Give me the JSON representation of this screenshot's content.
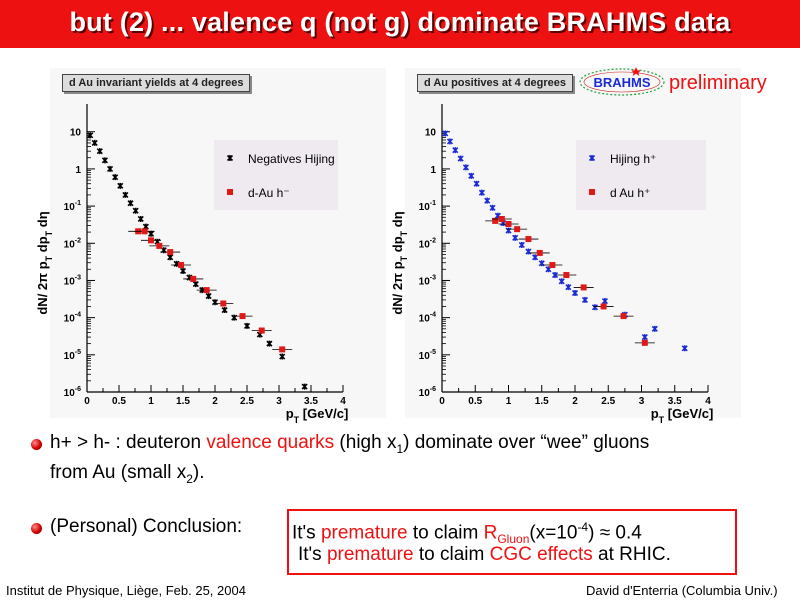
{
  "header": {
    "title": "but (2) ... valence q (not g) dominate BRAHMS data"
  },
  "logo": {
    "text": "BRAHMS"
  },
  "preliminary": "preliminary",
  "colors": {
    "accent": "#ee1111",
    "black_series": "#000000",
    "blue_series": "#1a2bd6",
    "red_series": "#e01818"
  },
  "chart_data": [
    {
      "type": "scatter",
      "title": "d Au invariant yields at 4 degrees",
      "xlabel": "p_T [GeV/c]",
      "ylabel": "dN/ 2π p_T dp_T dη",
      "y_log": true,
      "xlim": [
        0,
        4
      ],
      "ylim": [
        1e-06,
        30
      ],
      "x_ticks": [
        "0",
        "0.5",
        "1",
        "1.5",
        "2",
        "2.5",
        "3",
        "3.5",
        "4"
      ],
      "y_ticks": [
        "10",
        "1",
        "10^-1",
        "10^-2",
        "10^-3",
        "10^-4",
        "10^-5",
        "10^-6"
      ],
      "legend_position": "top-right",
      "series": [
        {
          "name": "Negatives Hijing",
          "color": "#000000",
          "marker": "star",
          "x": [
            0.05,
            0.12,
            0.2,
            0.28,
            0.36,
            0.44,
            0.52,
            0.6,
            0.68,
            0.76,
            0.84,
            0.92,
            1.0,
            1.1,
            1.2,
            1.3,
            1.4,
            1.5,
            1.6,
            1.7,
            1.8,
            1.9,
            2.0,
            2.15,
            2.3,
            2.5,
            2.7,
            2.85,
            3.05,
            3.4
          ],
          "y": [
            8,
            5,
            3,
            1.7,
            1,
            0.6,
            0.35,
            0.2,
            0.12,
            0.075,
            0.045,
            0.028,
            0.018,
            0.011,
            0.0065,
            0.0042,
            0.0028,
            0.0018,
            0.0012,
            0.0008,
            0.00055,
            0.00038,
            0.00026,
            0.00016,
            0.0001,
            6e-05,
            3.5e-05,
            2e-05,
            9e-06,
            1.4e-06
          ]
        },
        {
          "name": "d-Au h⁻",
          "color": "#e01818",
          "marker": "square",
          "x": [
            0.8,
            0.9,
            1.0,
            1.13,
            1.3,
            1.47,
            1.66,
            1.87,
            2.13,
            2.43,
            2.73,
            3.05
          ],
          "y": [
            0.021,
            0.021,
            0.012,
            0.0085,
            0.0058,
            0.0026,
            0.0011,
            0.00055,
            0.00024,
            0.00011,
            4.5e-05,
            1.4e-05
          ]
        }
      ]
    },
    {
      "type": "scatter",
      "title": "d Au positives at 4 degrees",
      "xlabel": "p_T [GeV/c]",
      "ylabel": "dN/ 2π p_T dp_T dη",
      "y_log": true,
      "xlim": [
        0,
        4
      ],
      "ylim": [
        1e-06,
        30
      ],
      "x_ticks": [
        "0",
        "0.5",
        "1",
        "1.5",
        "2",
        "2.5",
        "3",
        "3.5",
        "4"
      ],
      "y_ticks": [
        "10",
        "1",
        "10^-1",
        "10^-2",
        "10^-3",
        "10^-4",
        "10^-5",
        "10^-6"
      ],
      "legend_position": "top-right",
      "series": [
        {
          "name": "Hijing h⁺",
          "color": "#1a2bd6",
          "marker": "star",
          "x": [
            0.05,
            0.12,
            0.2,
            0.28,
            0.36,
            0.44,
            0.52,
            0.6,
            0.68,
            0.76,
            0.84,
            0.92,
            1.0,
            1.1,
            1.2,
            1.3,
            1.4,
            1.5,
            1.6,
            1.7,
            1.8,
            1.9,
            2.0,
            2.15,
            2.3,
            2.45,
            2.75,
            3.05,
            3.2,
            3.65
          ],
          "y": [
            9,
            5.5,
            3.2,
            1.9,
            1.1,
            0.65,
            0.4,
            0.23,
            0.14,
            0.09,
            0.055,
            0.035,
            0.022,
            0.014,
            0.009,
            0.006,
            0.0042,
            0.0029,
            0.002,
            0.0014,
            0.00095,
            0.00066,
            0.00046,
            0.0003,
            0.00019,
            0.00028,
            0.00012,
            3e-05,
            5e-05,
            1.5e-05
          ]
        },
        {
          "name": "d Au h⁺",
          "color": "#e01818",
          "marker": "square",
          "x": [
            0.8,
            0.9,
            1.0,
            1.13,
            1.3,
            1.47,
            1.66,
            1.87,
            2.13,
            2.43,
            2.73,
            3.05
          ],
          "y": [
            0.04,
            0.045,
            0.033,
            0.024,
            0.013,
            0.0055,
            0.0026,
            0.0014,
            0.00065,
            0.0002,
            0.00011,
            2.1e-05
          ]
        }
      ]
    }
  ],
  "bullets": {
    "b1_pre": "h+ > h- :  deuteron ",
    "b1_red": "valence quarks",
    "b1_mid": " (high x",
    "b1_sub": "1",
    "b1_post": ") dominate over “wee” gluons",
    "b1_line2_pre": "from Au (small x",
    "b1_line2_sub": "2",
    "b1_line2_post": ").",
    "b2_label": "(Personal) Conclusion:",
    "b2_l1_a": "It's ",
    "b2_l1_red1": "premature",
    "b2_l1_b": " to claim ",
    "b2_l1_red2": "R",
    "b2_l1_sub": "Gluon",
    "b2_l1_c": "(x=10",
    "b2_l1_sup": "-4",
    "b2_l1_d": ") ≈ 0.4",
    "b2_l2_a": "It's ",
    "b2_l2_red1": "premature",
    "b2_l2_b": " to claim ",
    "b2_l2_red2": "CGC effects",
    "b2_l2_c": " at RHIC."
  },
  "footer": {
    "left": "Institut de Physique, Liège, Feb. 25, 2004",
    "right": "David d'Enterria (Columbia Univ.)"
  }
}
